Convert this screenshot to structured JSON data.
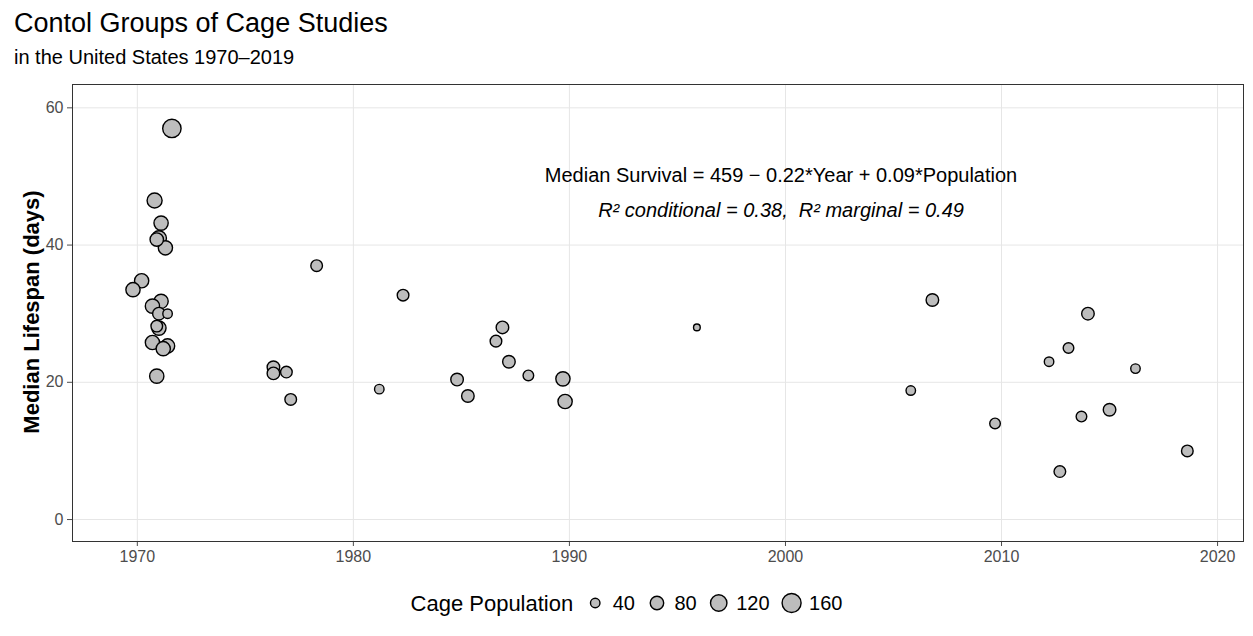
{
  "chart_data": {
    "type": "scatter",
    "title": "Contol Groups of Cage Studies",
    "subtitle": "in the United States 1970–2019",
    "y_label": "Median Lifespan (days)",
    "annotations": [
      "Median Survival = 459 − 0.22*Year + 0.09*Population",
      "R² conditional = 0.38,  R² marginal = 0.49"
    ],
    "x": [
      1971.6,
      1970.8,
      1971.1,
      1971.0,
      1970.9,
      1971.3,
      1970.2,
      1969.8,
      1971.1,
      1970.7,
      1971.0,
      1971.4,
      1970.9,
      1971.0,
      1970.7,
      1971.4,
      1971.2,
      1970.9,
      1976.3,
      1976.3,
      1976.9,
      1977.1,
      1978.3,
      1981.2,
      1982.3,
      1984.8,
      1985.3,
      1986.6,
      1986.9,
      1987.2,
      1988.1,
      1989.7,
      1989.8,
      1995.9,
      2005.8,
      2006.8,
      2009.7,
      2012.2,
      2012.7,
      2013.1,
      2013.7,
      2014.0,
      2015.0,
      2016.2,
      2018.6
    ],
    "values": [
      57,
      46.5,
      43.2,
      41,
      40.8,
      39.6,
      34.8,
      33.5,
      31.8,
      31.1,
      30,
      30,
      28.2,
      27.9,
      25.8,
      25.3,
      24.9,
      20.9,
      22.2,
      21.3,
      21.5,
      17.5,
      37,
      19,
      32.7,
      20.4,
      18,
      26,
      28,
      23,
      21,
      20.5,
      17.2,
      28,
      18.8,
      32,
      14,
      23,
      7,
      25,
      15,
      30,
      16,
      22,
      10
    ],
    "sizes": [
      150,
      100,
      90,
      100,
      80,
      90,
      90,
      90,
      90,
      90,
      70,
      40,
      60,
      90,
      90,
      90,
      90,
      90,
      70,
      70,
      60,
      60,
      60,
      40,
      60,
      70,
      70,
      60,
      70,
      70,
      50,
      90,
      90,
      20,
      40,
      70,
      50,
      40,
      60,
      50,
      50,
      70,
      70,
      40,
      60
    ],
    "size_legend_title": "Cage Population",
    "size_legend": [
      40,
      80,
      120,
      160
    ],
    "color": "#bdbdbd",
    "xlim": [
      1967,
      2021.2
    ],
    "ylim": [
      -3.2,
      63.4
    ],
    "xticks": [
      1970,
      1980,
      1990,
      2000,
      2010,
      2020
    ],
    "yticks": [
      0,
      20,
      40,
      60
    ],
    "grid": true
  }
}
